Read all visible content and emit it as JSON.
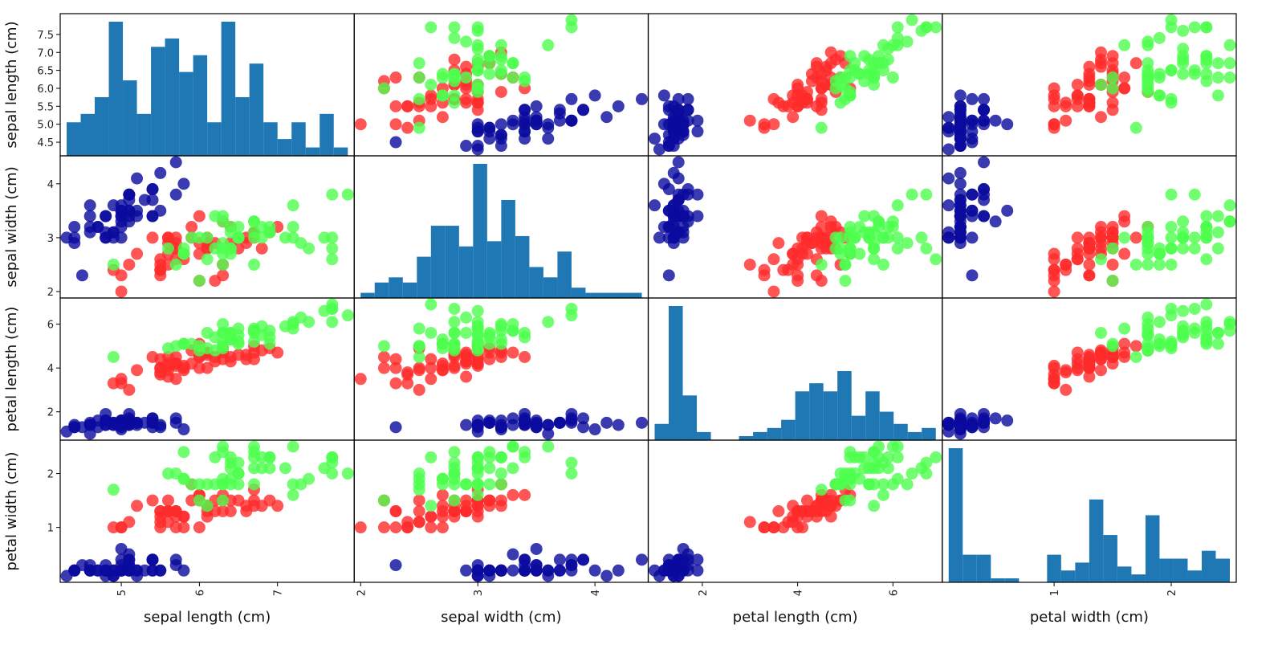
{
  "chart_data": {
    "type": "scatter_matrix",
    "variables": [
      "sepal length (cm)",
      "sepal width (cm)",
      "petal length (cm)",
      "petal width (cm)"
    ],
    "ranges": [
      [
        4.3,
        7.9
      ],
      [
        2.0,
        4.4
      ],
      [
        1.0,
        6.9
      ],
      [
        0.1,
        2.5
      ]
    ],
    "x_ticks": [
      [
        5,
        6,
        7
      ],
      [
        2,
        3,
        4
      ],
      [
        2,
        4,
        6
      ],
      [
        1,
        2
      ]
    ],
    "y_ticks": [
      [
        4.5,
        5.0,
        5.5,
        6.0,
        6.5,
        7.0,
        7.5
      ],
      [
        2,
        3,
        4
      ],
      [
        2,
        4,
        6
      ],
      [
        1,
        2
      ]
    ],
    "x_tick_labels": [
      [
        "5",
        "6",
        "7"
      ],
      [
        "2",
        "3",
        "4"
      ],
      [
        "2",
        "4",
        "6"
      ],
      [
        "1",
        "2"
      ]
    ],
    "y_tick_labels": [
      [
        "4.5",
        "5.0",
        "5.5",
        "6.0",
        "6.5",
        "7.0",
        "7.5"
      ],
      [
        "2",
        "3",
        "4"
      ],
      [
        "2",
        "4",
        "6"
      ],
      [
        "1",
        "2"
      ]
    ],
    "diagonal": "histogram",
    "hist_bins": 20,
    "hist_color": "#1f77b4",
    "class_colors": [
      "#0a0a9e",
      "#ff2a2a",
      "#4dff4d"
    ],
    "grid": false,
    "legend": "none",
    "points": [
      [
        5.1,
        3.5,
        1.4,
        0.2,
        0
      ],
      [
        4.9,
        3.0,
        1.4,
        0.2,
        0
      ],
      [
        4.7,
        3.2,
        1.3,
        0.2,
        0
      ],
      [
        4.6,
        3.1,
        1.5,
        0.2,
        0
      ],
      [
        5.0,
        3.6,
        1.4,
        0.2,
        0
      ],
      [
        5.4,
        3.9,
        1.7,
        0.4,
        0
      ],
      [
        4.6,
        3.4,
        1.4,
        0.3,
        0
      ],
      [
        5.0,
        3.4,
        1.5,
        0.2,
        0
      ],
      [
        4.4,
        2.9,
        1.4,
        0.2,
        0
      ],
      [
        4.9,
        3.1,
        1.5,
        0.1,
        0
      ],
      [
        5.4,
        3.7,
        1.5,
        0.2,
        0
      ],
      [
        4.8,
        3.4,
        1.6,
        0.2,
        0
      ],
      [
        4.8,
        3.0,
        1.4,
        0.1,
        0
      ],
      [
        4.3,
        3.0,
        1.1,
        0.1,
        0
      ],
      [
        5.8,
        4.0,
        1.2,
        0.2,
        0
      ],
      [
        5.7,
        4.4,
        1.5,
        0.4,
        0
      ],
      [
        5.4,
        3.9,
        1.3,
        0.4,
        0
      ],
      [
        5.1,
        3.5,
        1.4,
        0.3,
        0
      ],
      [
        5.7,
        3.8,
        1.7,
        0.3,
        0
      ],
      [
        5.1,
        3.8,
        1.5,
        0.3,
        0
      ],
      [
        5.4,
        3.4,
        1.7,
        0.2,
        0
      ],
      [
        5.1,
        3.7,
        1.5,
        0.4,
        0
      ],
      [
        4.6,
        3.6,
        1.0,
        0.2,
        0
      ],
      [
        5.1,
        3.3,
        1.7,
        0.5,
        0
      ],
      [
        4.8,
        3.4,
        1.9,
        0.2,
        0
      ],
      [
        5.0,
        3.0,
        1.6,
        0.2,
        0
      ],
      [
        5.0,
        3.4,
        1.6,
        0.4,
        0
      ],
      [
        5.2,
        3.5,
        1.5,
        0.2,
        0
      ],
      [
        5.2,
        3.4,
        1.4,
        0.2,
        0
      ],
      [
        4.7,
        3.2,
        1.6,
        0.2,
        0
      ],
      [
        4.8,
        3.1,
        1.6,
        0.2,
        0
      ],
      [
        5.4,
        3.4,
        1.5,
        0.4,
        0
      ],
      [
        5.2,
        4.1,
        1.5,
        0.1,
        0
      ],
      [
        5.5,
        4.2,
        1.4,
        0.2,
        0
      ],
      [
        4.9,
        3.1,
        1.5,
        0.2,
        0
      ],
      [
        5.0,
        3.2,
        1.2,
        0.2,
        0
      ],
      [
        5.5,
        3.5,
        1.3,
        0.2,
        0
      ],
      [
        4.9,
        3.6,
        1.4,
        0.1,
        0
      ],
      [
        4.4,
        3.0,
        1.3,
        0.2,
        0
      ],
      [
        5.1,
        3.4,
        1.5,
        0.2,
        0
      ],
      [
        5.0,
        3.5,
        1.3,
        0.3,
        0
      ],
      [
        4.5,
        2.3,
        1.3,
        0.3,
        0
      ],
      [
        4.4,
        3.2,
        1.3,
        0.2,
        0
      ],
      [
        5.0,
        3.5,
        1.6,
        0.6,
        0
      ],
      [
        5.1,
        3.8,
        1.9,
        0.4,
        0
      ],
      [
        4.8,
        3.0,
        1.4,
        0.3,
        0
      ],
      [
        5.1,
        3.8,
        1.6,
        0.2,
        0
      ],
      [
        4.6,
        3.2,
        1.4,
        0.2,
        0
      ],
      [
        5.3,
        3.7,
        1.5,
        0.2,
        0
      ],
      [
        5.0,
        3.3,
        1.4,
        0.2,
        0
      ],
      [
        7.0,
        3.2,
        4.7,
        1.4,
        1
      ],
      [
        6.4,
        3.2,
        4.5,
        1.5,
        1
      ],
      [
        6.9,
        3.1,
        4.9,
        1.5,
        1
      ],
      [
        5.5,
        2.3,
        4.0,
        1.3,
        1
      ],
      [
        6.5,
        2.8,
        4.6,
        1.5,
        1
      ],
      [
        5.7,
        2.8,
        4.5,
        1.3,
        1
      ],
      [
        6.3,
        3.3,
        4.7,
        1.6,
        1
      ],
      [
        4.9,
        2.4,
        3.3,
        1.0,
        1
      ],
      [
        6.6,
        2.9,
        4.6,
        1.3,
        1
      ],
      [
        5.2,
        2.7,
        3.9,
        1.4,
        1
      ],
      [
        5.0,
        2.0,
        3.5,
        1.0,
        1
      ],
      [
        5.9,
        3.0,
        4.2,
        1.5,
        1
      ],
      [
        6.0,
        2.2,
        4.0,
        1.0,
        1
      ],
      [
        6.1,
        2.9,
        4.7,
        1.4,
        1
      ],
      [
        5.6,
        2.9,
        3.6,
        1.3,
        1
      ],
      [
        6.7,
        3.1,
        4.4,
        1.4,
        1
      ],
      [
        5.6,
        3.0,
        4.5,
        1.5,
        1
      ],
      [
        5.8,
        2.7,
        4.1,
        1.0,
        1
      ],
      [
        6.2,
        2.2,
        4.5,
        1.5,
        1
      ],
      [
        5.6,
        2.5,
        3.9,
        1.1,
        1
      ],
      [
        5.9,
        3.2,
        4.8,
        1.8,
        1
      ],
      [
        6.1,
        2.8,
        4.0,
        1.3,
        1
      ],
      [
        6.3,
        2.5,
        4.9,
        1.5,
        1
      ],
      [
        6.1,
        2.8,
        4.7,
        1.2,
        1
      ],
      [
        6.4,
        2.9,
        4.3,
        1.3,
        1
      ],
      [
        6.6,
        3.0,
        4.4,
        1.4,
        1
      ],
      [
        6.8,
        2.8,
        4.8,
        1.4,
        1
      ],
      [
        6.7,
        3.0,
        5.0,
        1.7,
        1
      ],
      [
        6.0,
        2.9,
        4.5,
        1.5,
        1
      ],
      [
        5.7,
        2.6,
        3.5,
        1.0,
        1
      ],
      [
        5.5,
        2.4,
        3.8,
        1.1,
        1
      ],
      [
        5.5,
        2.4,
        3.7,
        1.0,
        1
      ],
      [
        5.8,
        2.7,
        3.9,
        1.2,
        1
      ],
      [
        6.0,
        2.7,
        5.1,
        1.6,
        1
      ],
      [
        5.4,
        3.0,
        4.5,
        1.5,
        1
      ],
      [
        6.0,
        3.4,
        4.5,
        1.6,
        1
      ],
      [
        6.7,
        3.1,
        4.7,
        1.5,
        1
      ],
      [
        6.3,
        2.3,
        4.4,
        1.3,
        1
      ],
      [
        5.6,
        3.0,
        4.1,
        1.3,
        1
      ],
      [
        5.5,
        2.5,
        4.0,
        1.3,
        1
      ],
      [
        5.5,
        2.6,
        4.4,
        1.2,
        1
      ],
      [
        6.1,
        3.0,
        4.6,
        1.4,
        1
      ],
      [
        5.8,
        2.6,
        4.0,
        1.2,
        1
      ],
      [
        5.0,
        2.3,
        3.3,
        1.0,
        1
      ],
      [
        5.6,
        2.7,
        4.2,
        1.3,
        1
      ],
      [
        5.7,
        3.0,
        4.2,
        1.2,
        1
      ],
      [
        5.7,
        2.9,
        4.2,
        1.3,
        1
      ],
      [
        6.2,
        2.9,
        4.3,
        1.3,
        1
      ],
      [
        5.1,
        2.5,
        3.0,
        1.1,
        1
      ],
      [
        5.7,
        2.8,
        4.1,
        1.3,
        1
      ],
      [
        6.3,
        3.3,
        6.0,
        2.5,
        2
      ],
      [
        5.8,
        2.7,
        5.1,
        1.9,
        2
      ],
      [
        7.1,
        3.0,
        5.9,
        2.1,
        2
      ],
      [
        6.3,
        2.9,
        5.6,
        1.8,
        2
      ],
      [
        6.5,
        3.0,
        5.8,
        2.2,
        2
      ],
      [
        7.6,
        3.0,
        6.6,
        2.1,
        2
      ],
      [
        4.9,
        2.5,
        4.5,
        1.7,
        2
      ],
      [
        7.3,
        2.9,
        6.3,
        1.8,
        2
      ],
      [
        6.7,
        2.5,
        5.8,
        1.8,
        2
      ],
      [
        7.2,
        3.6,
        6.1,
        2.5,
        2
      ],
      [
        6.5,
        3.2,
        5.1,
        2.0,
        2
      ],
      [
        6.4,
        2.7,
        5.3,
        1.9,
        2
      ],
      [
        6.8,
        3.0,
        5.5,
        2.1,
        2
      ],
      [
        5.7,
        2.5,
        5.0,
        2.0,
        2
      ],
      [
        5.8,
        2.8,
        5.1,
        2.4,
        2
      ],
      [
        6.4,
        3.2,
        5.3,
        2.3,
        2
      ],
      [
        6.5,
        3.0,
        5.5,
        1.8,
        2
      ],
      [
        7.7,
        3.8,
        6.7,
        2.2,
        2
      ],
      [
        7.7,
        2.6,
        6.9,
        2.3,
        2
      ],
      [
        6.0,
        2.2,
        5.0,
        1.5,
        2
      ],
      [
        6.9,
        3.2,
        5.7,
        2.3,
        2
      ],
      [
        5.6,
        2.8,
        4.9,
        2.0,
        2
      ],
      [
        7.7,
        2.8,
        6.7,
        2.0,
        2
      ],
      [
        6.3,
        2.7,
        4.9,
        1.8,
        2
      ],
      [
        6.7,
        3.3,
        5.7,
        2.1,
        2
      ],
      [
        7.2,
        3.2,
        6.0,
        1.8,
        2
      ],
      [
        6.2,
        2.8,
        4.8,
        1.8,
        2
      ],
      [
        6.1,
        3.0,
        4.9,
        1.8,
        2
      ],
      [
        6.4,
        2.8,
        5.6,
        2.1,
        2
      ],
      [
        7.2,
        3.0,
        5.8,
        1.6,
        2
      ],
      [
        7.4,
        2.8,
        6.1,
        1.9,
        2
      ],
      [
        7.9,
        3.8,
        6.4,
        2.0,
        2
      ],
      [
        6.4,
        2.8,
        5.6,
        2.2,
        2
      ],
      [
        6.3,
        2.8,
        5.1,
        1.5,
        2
      ],
      [
        6.1,
        2.6,
        5.6,
        1.4,
        2
      ],
      [
        7.7,
        3.0,
        6.1,
        2.3,
        2
      ],
      [
        6.3,
        3.4,
        5.6,
        2.4,
        2
      ],
      [
        6.4,
        3.1,
        5.5,
        1.8,
        2
      ],
      [
        6.0,
        3.0,
        4.8,
        1.8,
        2
      ],
      [
        6.9,
        3.1,
        5.4,
        2.1,
        2
      ],
      [
        6.7,
        3.1,
        5.6,
        2.4,
        2
      ],
      [
        6.9,
        3.1,
        5.1,
        2.3,
        2
      ],
      [
        5.8,
        2.7,
        5.1,
        1.9,
        2
      ],
      [
        6.8,
        3.2,
        5.9,
        2.3,
        2
      ],
      [
        6.7,
        3.3,
        5.7,
        2.5,
        2
      ],
      [
        6.7,
        3.0,
        5.2,
        2.3,
        2
      ],
      [
        6.3,
        2.5,
        5.0,
        1.9,
        2
      ],
      [
        6.5,
        3.0,
        5.2,
        2.0,
        2
      ],
      [
        6.2,
        3.4,
        5.4,
        2.3,
        2
      ],
      [
        5.9,
        3.0,
        5.1,
        1.8,
        2
      ]
    ]
  }
}
